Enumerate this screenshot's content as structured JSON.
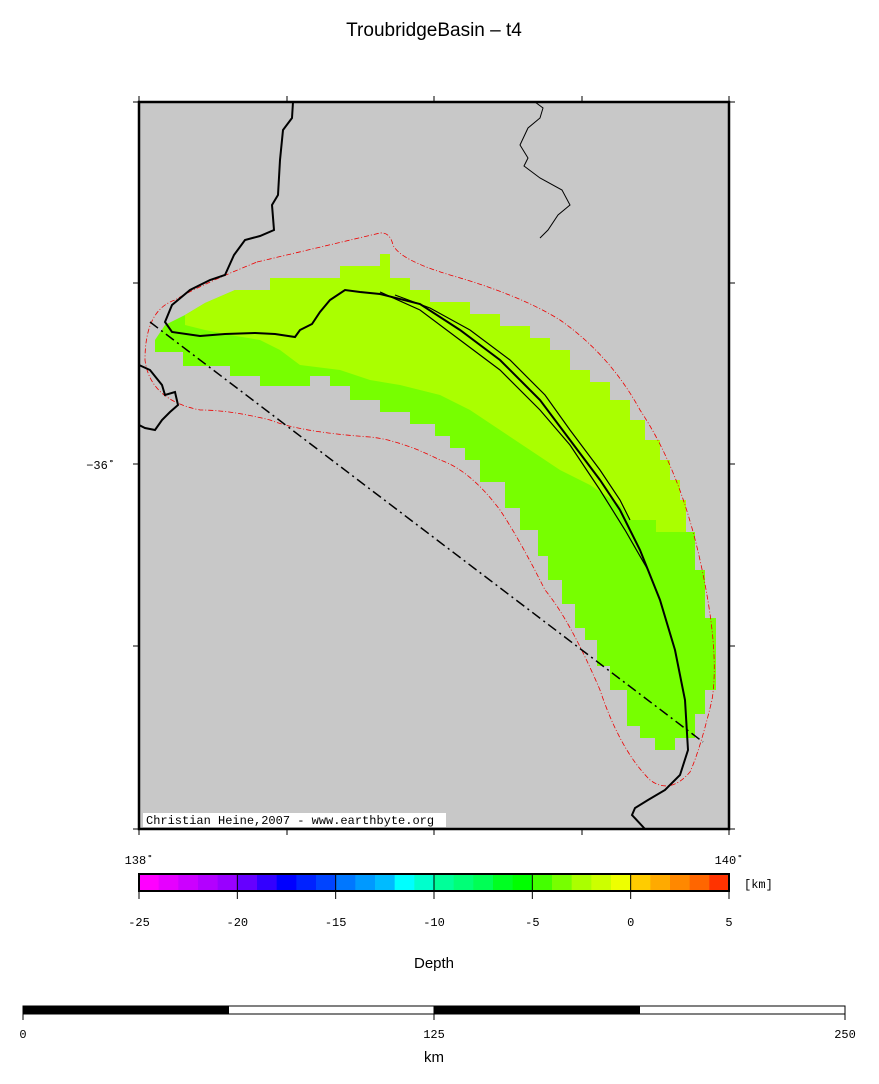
{
  "title": "TroubridgeBasin – t4",
  "map": {
    "lon_labels": [
      "138˚",
      "140˚"
    ],
    "lat_labels": [
      "−36˚"
    ],
    "credit": "Christian Heine,2007 - www.earthbyte.org"
  },
  "colorbar": {
    "label": "Depth",
    "unit": "[km]",
    "lim": [
      -25,
      5
    ],
    "ticks": [
      -25,
      -20,
      -15,
      -10,
      -5,
      0,
      5
    ],
    "colors": [
      "#ff00ff",
      "#e600ff",
      "#cc00ff",
      "#b300ff",
      "#9900ff",
      "#6600ff",
      "#3300ff",
      "#0000ff",
      "#0022ff",
      "#0044ff",
      "#0077ff",
      "#0099ff",
      "#00bbff",
      "#00ffff",
      "#00ffcc",
      "#00ff99",
      "#00ff77",
      "#00ff55",
      "#00ff22",
      "#00ff00",
      "#44ff00",
      "#77ff00",
      "#aaff00",
      "#ccff00",
      "#eeff00",
      "#ffcc00",
      "#ffaa00",
      "#ff8800",
      "#ff6600",
      "#ff3300"
    ]
  },
  "scalebar": {
    "unit": "km",
    "lim": [
      0,
      250
    ],
    "ticks": [
      0,
      125,
      250
    ]
  }
}
